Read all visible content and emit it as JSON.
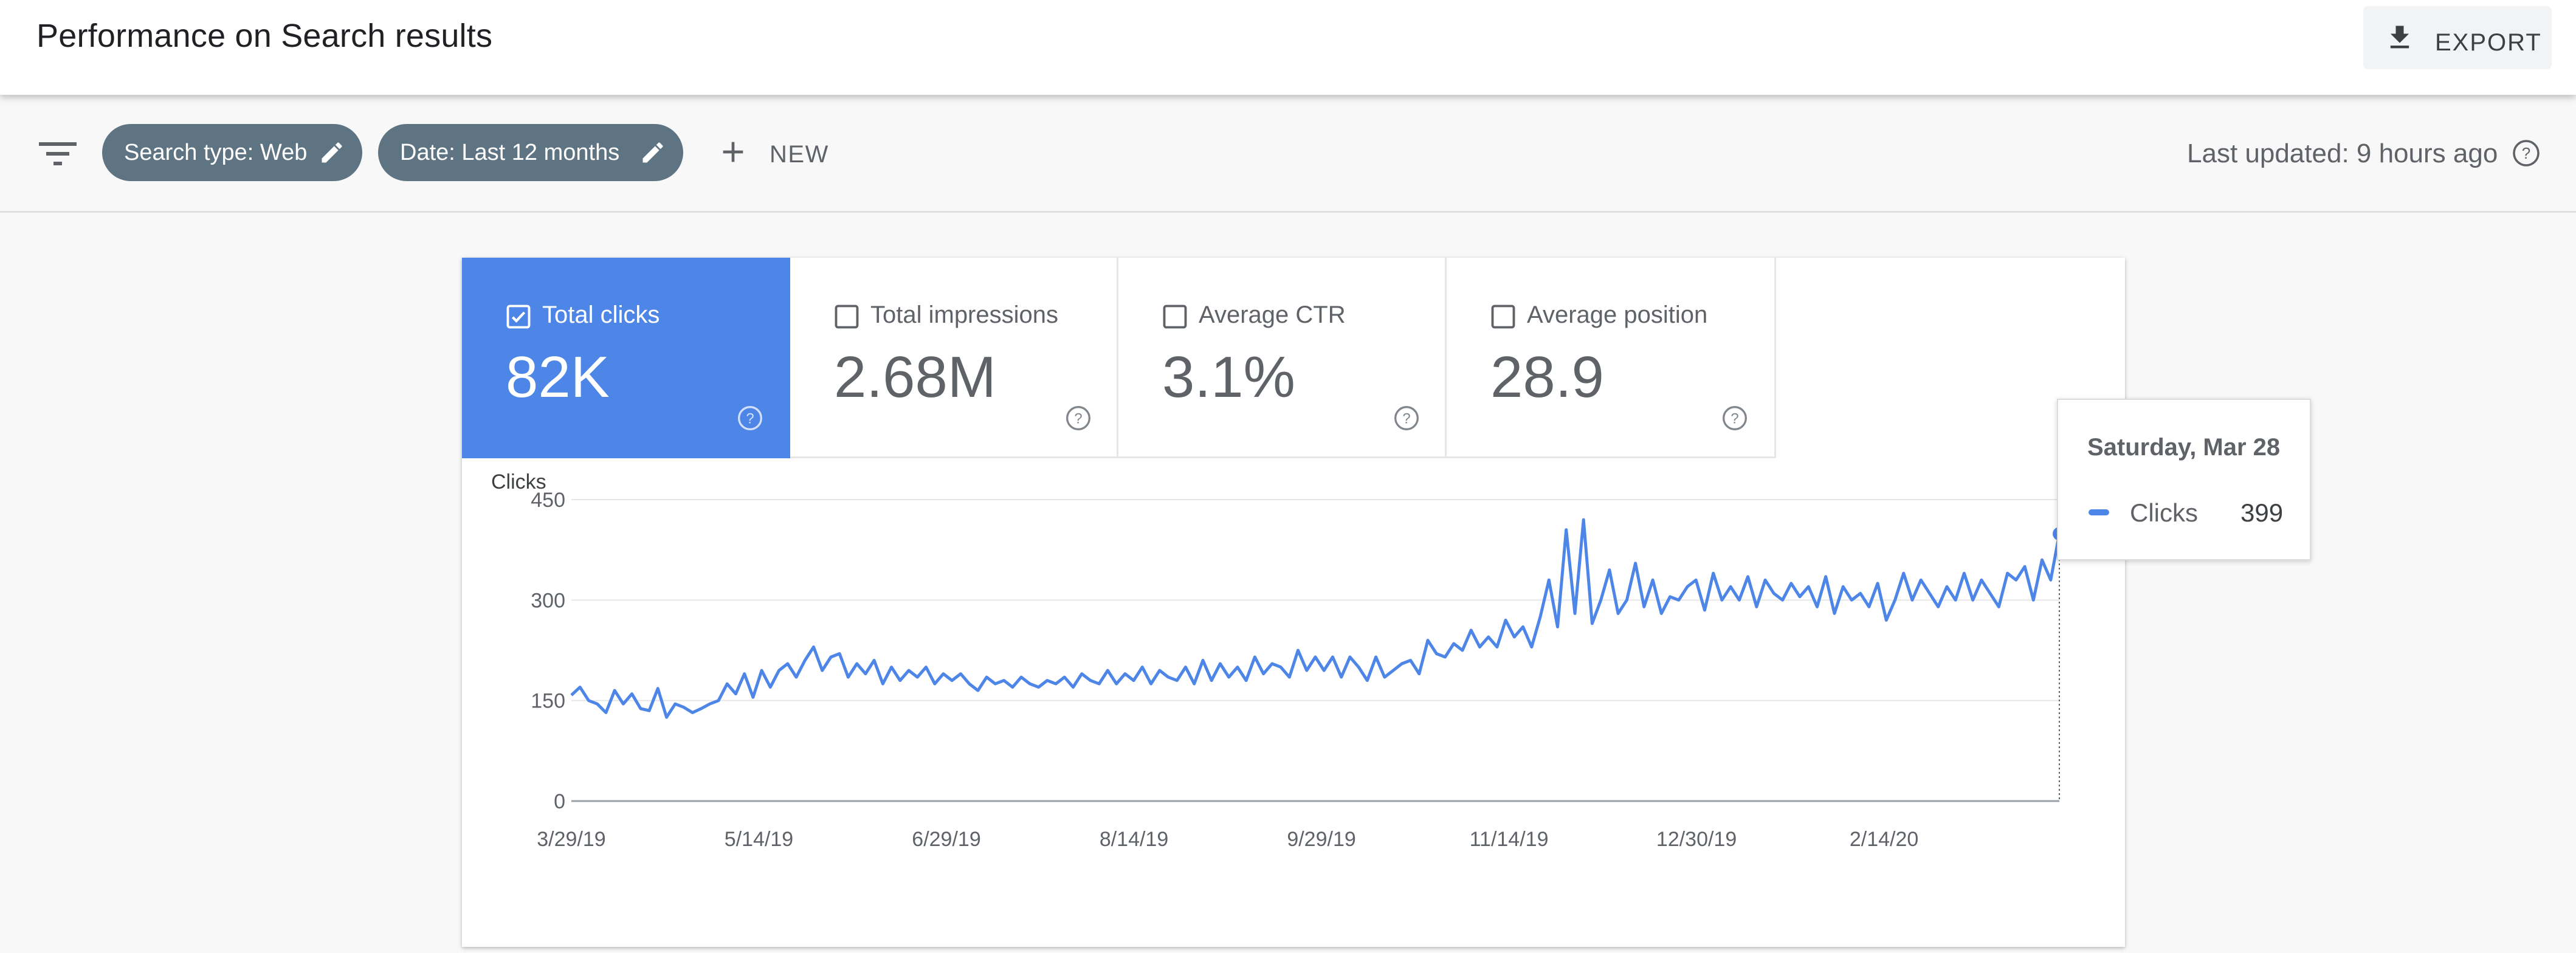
{
  "header": {
    "title": "Performance on Search results",
    "export_label": "EXPORT"
  },
  "filters": {
    "chips": [
      {
        "label": "Search type: Web"
      },
      {
        "label": "Date: Last 12 months"
      }
    ],
    "new_label": "NEW",
    "last_updated": "Last updated: 9 hours ago"
  },
  "metrics": [
    {
      "label": "Total clicks",
      "value": "82K",
      "selected": true
    },
    {
      "label": "Total impressions",
      "value": "2.68M",
      "selected": false
    },
    {
      "label": "Average CTR",
      "value": "3.1%",
      "selected": false
    },
    {
      "label": "Average position",
      "value": "28.9",
      "selected": false
    }
  ],
  "colors": {
    "accent": "#4e86e8",
    "chip": "#5f7482",
    "grid": "#e6e6e6",
    "axis_text": "#5f6368"
  },
  "tooltip": {
    "date": "Saturday, Mar 28",
    "series": "Clicks",
    "value": "399"
  },
  "chart_data": {
    "type": "line",
    "title": "",
    "ylabel": "Clicks",
    "xlabel": "",
    "ylim": [
      0,
      450
    ],
    "yticks": [
      0,
      150,
      300,
      450
    ],
    "x_range": [
      "3/29/19",
      "3/28/20"
    ],
    "xtick_labels": [
      "3/29/19",
      "5/14/19",
      "6/29/19",
      "8/14/19",
      "9/29/19",
      "11/14/19",
      "12/30/19",
      "2/14/20"
    ],
    "grid": true,
    "series": [
      {
        "name": "Clicks",
        "color": "#4e86e8",
        "x_start": "3/29/19",
        "x_end": "3/28/20",
        "values": [
          158,
          170,
          150,
          145,
          132,
          165,
          145,
          160,
          138,
          135,
          168,
          125,
          145,
          140,
          132,
          138,
          145,
          150,
          175,
          160,
          190,
          155,
          195,
          170,
          195,
          205,
          185,
          210,
          230,
          195,
          215,
          220,
          185,
          205,
          190,
          210,
          175,
          200,
          180,
          195,
          185,
          200,
          175,
          190,
          180,
          190,
          175,
          165,
          185,
          175,
          180,
          170,
          185,
          175,
          170,
          180,
          175,
          185,
          170,
          190,
          180,
          175,
          195,
          175,
          190,
          180,
          200,
          175,
          195,
          185,
          180,
          200,
          175,
          210,
          180,
          205,
          185,
          200,
          180,
          215,
          190,
          205,
          200,
          185,
          225,
          195,
          215,
          195,
          215,
          185,
          215,
          200,
          180,
          215,
          185,
          195,
          205,
          210,
          190,
          240,
          220,
          215,
          235,
          225,
          255,
          230,
          245,
          230,
          270,
          245,
          260,
          230,
          275,
          330,
          260,
          405,
          280,
          420,
          265,
          300,
          345,
          280,
          300,
          355,
          290,
          330,
          280,
          305,
          300,
          320,
          330,
          285,
          340,
          300,
          320,
          300,
          335,
          290,
          330,
          310,
          300,
          325,
          305,
          320,
          290,
          335,
          280,
          320,
          300,
          310,
          290,
          325,
          270,
          300,
          340,
          300,
          330,
          310,
          290,
          320,
          300,
          340,
          300,
          330,
          310,
          290,
          340,
          330,
          350,
          300,
          360,
          330,
          399
        ]
      }
    ]
  }
}
